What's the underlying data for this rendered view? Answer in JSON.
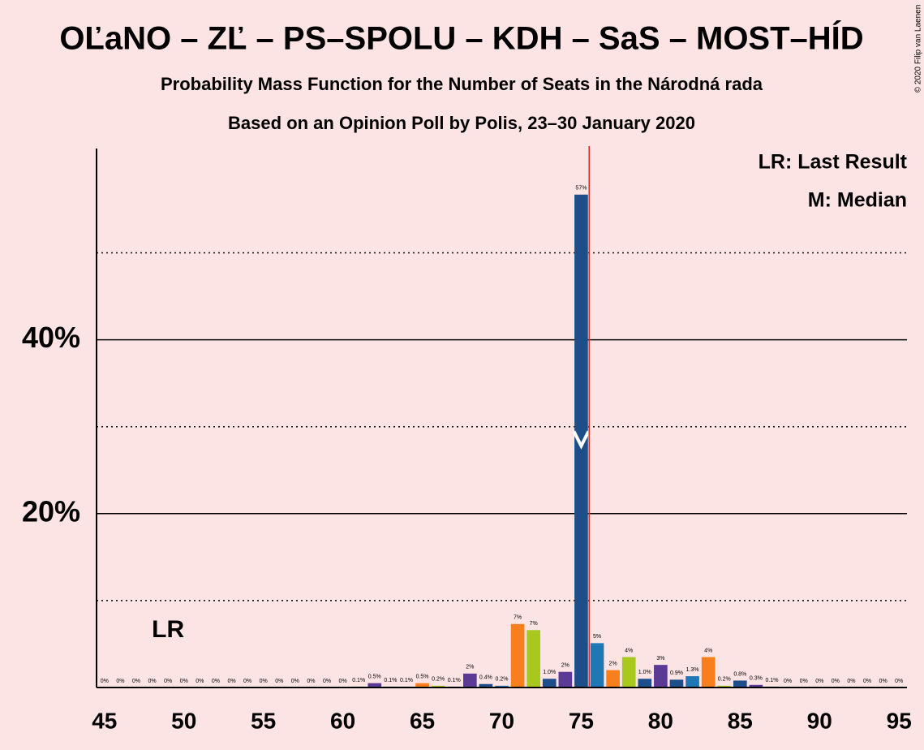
{
  "chart_data": {
    "type": "bar",
    "title": "OĽaNO – ZĽ – PS–SPOLU – KDH – SaS – MOST–HÍD",
    "subtitle": "Probability Mass Function for the Number of Seats in the Národná rada",
    "subtitle2": "Based on an Opinion Poll by Polis, 23–30 January 2020",
    "copyright": "© 2020 Filip van Laenen",
    "legend": [
      "LR: Last Result",
      "M: Median"
    ],
    "last_result_label": "LR",
    "last_result": 49,
    "median": 75,
    "majority_line": 75.5,
    "majority_color": "#e0281e",
    "x": [
      45,
      46,
      47,
      48,
      49,
      50,
      51,
      52,
      53,
      54,
      55,
      56,
      57,
      58,
      59,
      60,
      61,
      62,
      63,
      64,
      65,
      66,
      67,
      68,
      69,
      70,
      71,
      72,
      73,
      74,
      75,
      76,
      77,
      78,
      79,
      80,
      81,
      82,
      83,
      84,
      85,
      86,
      87,
      88,
      89,
      90,
      91,
      92,
      93,
      94,
      95
    ],
    "values": [
      0,
      0,
      0,
      0,
      0,
      0,
      0,
      0,
      0,
      0,
      0,
      0,
      0,
      0,
      0,
      0,
      0.1,
      0.5,
      0.1,
      0.1,
      0.5,
      0.2,
      0.1,
      1.6,
      0.4,
      0.2,
      7.3,
      6.6,
      1.0,
      1.8,
      56.7,
      5.1,
      2.0,
      3.5,
      1.0,
      2.6,
      0.9,
      1.3,
      3.5,
      0.2,
      0.8,
      0.3,
      0.1,
      0,
      0,
      0,
      0,
      0,
      0,
      0,
      0
    ],
    "value_labels": [
      "0%",
      "0%",
      "0%",
      "0%",
      "0%",
      "0%",
      "0%",
      "0%",
      "0%",
      "0%",
      "0%",
      "0%",
      "0%",
      "0%",
      "0%",
      "0%",
      "0.1%",
      "0.5%",
      "0.1%",
      "0.1%",
      "0.5%",
      "0.2%",
      "0.1%",
      "2%",
      "0.4%",
      "0.2%",
      "7%",
      "7%",
      "1.0%",
      "2%",
      "57%",
      "5%",
      "2%",
      "4%",
      "1.0%",
      "3%",
      "0.9%",
      "1.3%",
      "4%",
      "0.2%",
      "0.8%",
      "0.3%",
      "0.1%",
      "0%",
      "0%",
      "0%",
      "0%",
      "0%",
      "0%",
      "0%",
      "0%"
    ],
    "colors": [
      "#1d4e89",
      "#1f77b4",
      "#f77f1e",
      "#a8c81e",
      "#1d4e89",
      "#5b3a96",
      "#1d4e89",
      "#1f77b4",
      "#f77f1e",
      "#a8c81e",
      "#1d4e89",
      "#5b3a96",
      "#1d4e89",
      "#1f77b4",
      "#f77f1e",
      "#a8c81e",
      "#1d4e89",
      "#5b3a96",
      "#1d4e89",
      "#1f77b4",
      "#f77f1e",
      "#a8c81e",
      "#1d4e89",
      "#5b3a96",
      "#1d4e89",
      "#1f77b4",
      "#f77f1e",
      "#a8c81e",
      "#1d4e89",
      "#5b3a96",
      "#1d4e89",
      "#1f77b4",
      "#f77f1e",
      "#a8c81e",
      "#1d4e89",
      "#5b3a96",
      "#1d4e89",
      "#1f77b4",
      "#f77f1e",
      "#a8c81e",
      "#1d4e89",
      "#5b3a96",
      "#1d4e89",
      "#1f77b4",
      "#f77f1e",
      "#a8c81e",
      "#1d4e89",
      "#5b3a96",
      "#1d4e89",
      "#1f77b4",
      "#f77f1e"
    ],
    "xlim": [
      44.5,
      95.5
    ],
    "xticks": [
      45,
      50,
      55,
      60,
      65,
      70,
      75,
      80,
      85,
      90,
      95
    ],
    "ylim": [
      0,
      62
    ],
    "yticks": [
      {
        "value": 20,
        "label": "20%"
      },
      {
        "value": 40,
        "label": "40%"
      }
    ],
    "minor_gridlines": [
      10,
      30,
      50
    ],
    "grid": true
  }
}
